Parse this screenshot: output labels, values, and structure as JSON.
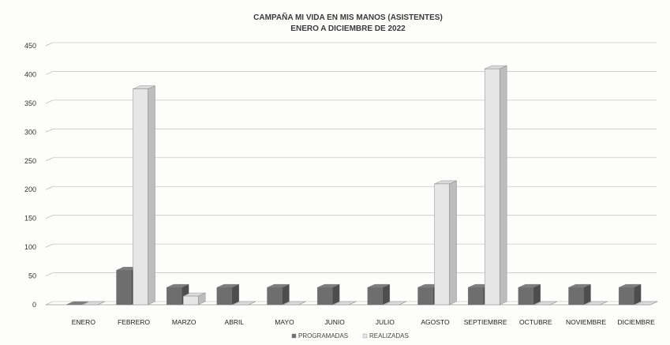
{
  "chart_data": {
    "type": "bar",
    "title": "CAMPAÑA MI VIDA EN MIS MANOS (ASISTENTES)",
    "subtitle": "ENERO A DICIEMBRE DE 2022",
    "xlabel": "",
    "ylabel": "",
    "ylim": [
      0,
      450
    ],
    "yticks": [
      "0",
      "50",
      "100",
      "150",
      "200",
      "250",
      "300",
      "350",
      "400",
      "450"
    ],
    "grid": true,
    "legend_position": "bottom",
    "categories": [
      "ENERO",
      "FEBRERO",
      "MARZO",
      "ABRIL",
      "MAYO",
      "JUNIO",
      "JULIO",
      "AGOSTO",
      "SEPTIEMBRE",
      "OCTUBRE",
      "NOVIEMBRE",
      "DICIEMBRE"
    ],
    "series": [
      {
        "name": "PROGRAMADAS",
        "color": "#6e6e6e",
        "values": [
          0,
          60,
          30,
          30,
          30,
          30,
          30,
          30,
          30,
          30,
          30,
          30
        ]
      },
      {
        "name": "REALIZADAS",
        "color": "#e6e6e6",
        "values": [
          0,
          375,
          15,
          0,
          0,
          0,
          0,
          210,
          410,
          0,
          0,
          0
        ]
      }
    ]
  }
}
